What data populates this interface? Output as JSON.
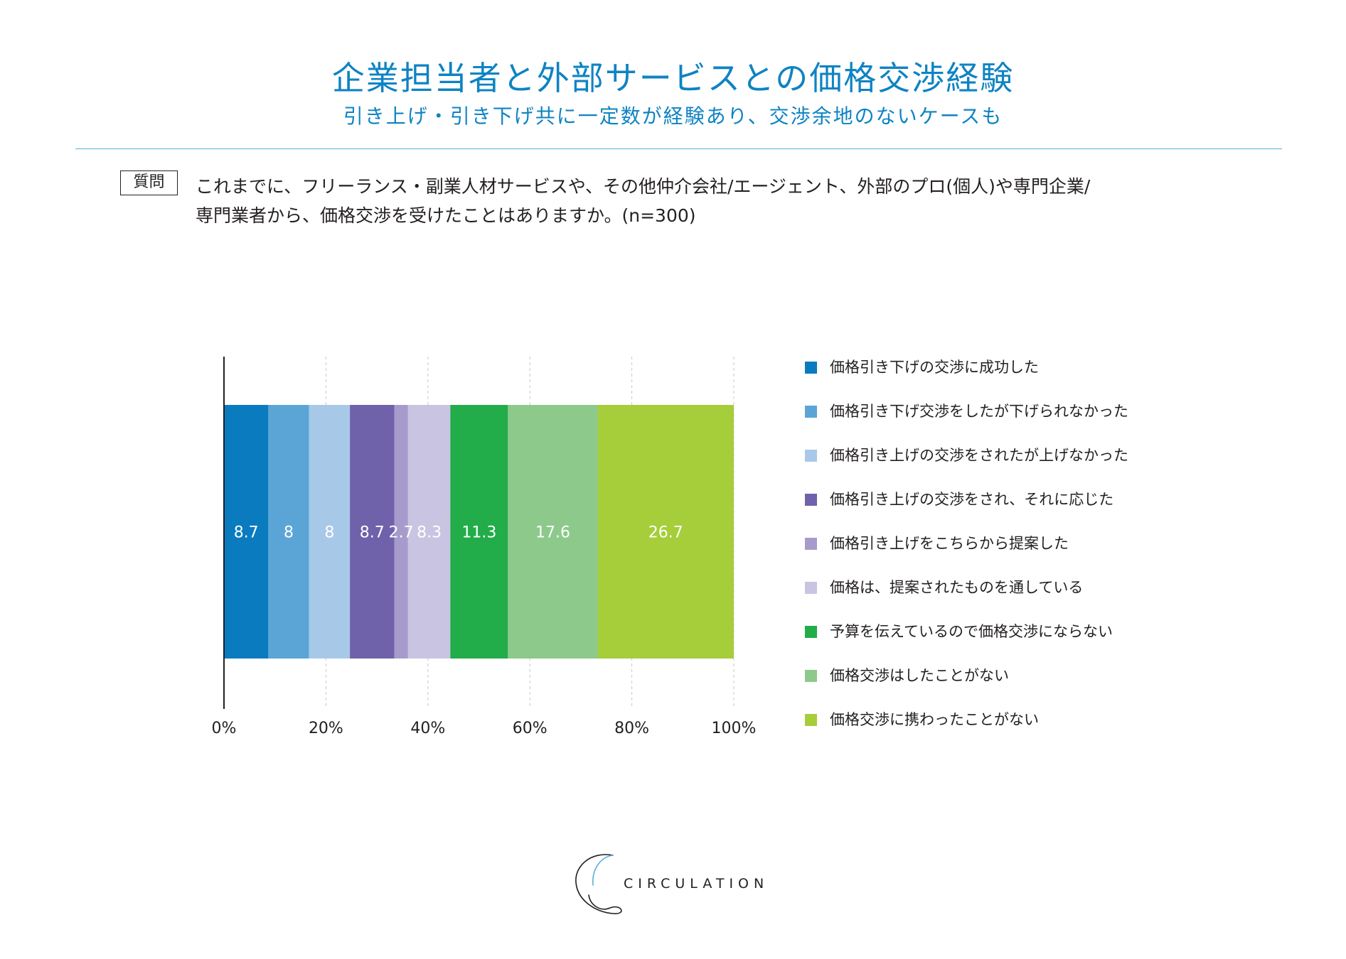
{
  "header": {
    "title": "企業担当者と外部サービスとの価格交渉経験",
    "subtitle": "引き上げ・引き下げ共に一定数が経験あり、交渉余地のないケースも"
  },
  "question": {
    "tag": "質問",
    "line1": "これまでに、フリーランス・副業人材サービスや、その他仲介会社/エージェント、外部のプロ(個人)や専門企業/",
    "line2": "専門業者から、価格交渉を受けたことはありますか。(n=300)"
  },
  "chart_data": {
    "type": "bar",
    "orientation": "horizontal",
    "stacked": true,
    "title": "企業担当者と外部サービスとの価格交渉経験",
    "xlabel": "",
    "ylabel": "",
    "xlim": [
      0,
      100
    ],
    "x_ticks": [
      "0%",
      "20%",
      "40%",
      "60%",
      "80%",
      "100%"
    ],
    "x_tick_values": [
      0,
      20,
      40,
      60,
      80,
      100
    ],
    "grid": "vertical-dashed",
    "legend_position": "right",
    "series": [
      {
        "name": "価格引き下げの交渉に成功した",
        "value": 8.7,
        "label": "8.7",
        "color": "#0a7bbf"
      },
      {
        "name": "価格引き下げ交渉をしたが下げられなかった",
        "value": 8.0,
        "label": "8",
        "color": "#5ba5d6"
      },
      {
        "name": "価格引き上げの交渉をされたが上げなかった",
        "value": 8.0,
        "label": "8",
        "color": "#a8c8e8"
      },
      {
        "name": "価格引き上げの交渉をされ、それに応じた",
        "value": 8.7,
        "label": "8.7",
        "color": "#7061ab"
      },
      {
        "name": "価格引き上げをこちらから提案した",
        "value": 2.7,
        "label": "2.7",
        "color": "#a79bcc"
      },
      {
        "name": "価格は、提案されたものを通している",
        "value": 8.3,
        "label": "8.3",
        "color": "#c9c4e2"
      },
      {
        "name": "予算を伝えているので価格交渉にならない",
        "value": 11.3,
        "label": "11.3",
        "color": "#22ac4a"
      },
      {
        "name": "価格交渉はしたことがない",
        "value": 17.6,
        "label": "17.6",
        "color": "#8cc98b"
      },
      {
        "name": "価格交渉に携わったことがない",
        "value": 26.7,
        "label": "26.7",
        "color": "#a6cd3a"
      }
    ]
  },
  "footer": {
    "logo_text": "CIRCULATION"
  }
}
